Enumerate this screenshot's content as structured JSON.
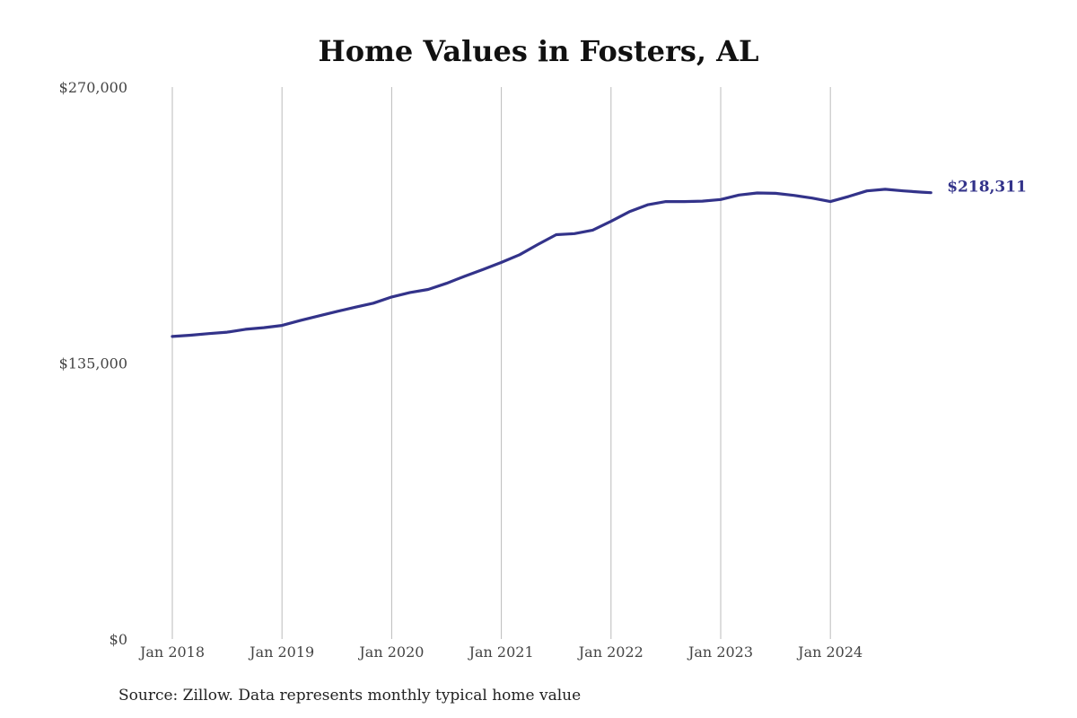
{
  "chart_data": {
    "type": "line",
    "title": "Home Values in Fosters, AL",
    "xlabel": "",
    "ylabel": "",
    "ylim": [
      0,
      270000
    ],
    "y_ticks": [
      {
        "value": 0,
        "label": "$0"
      },
      {
        "value": 135000,
        "label": "$135,000"
      },
      {
        "value": 270000,
        "label": "$270,000"
      }
    ],
    "x_ticks": [
      {
        "date": "2018-01",
        "label": "Jan 2018"
      },
      {
        "date": "2019-01",
        "label": "Jan 2019"
      },
      {
        "date": "2020-01",
        "label": "Jan 2020"
      },
      {
        "date": "2021-01",
        "label": "Jan 2021"
      },
      {
        "date": "2022-01",
        "label": "Jan 2022"
      },
      {
        "date": "2023-01",
        "label": "Jan 2023"
      },
      {
        "date": "2024-01",
        "label": "Jan 2024"
      }
    ],
    "xlim": [
      "2018-01",
      "2024-12"
    ],
    "grid": "vertical",
    "color": "#33338a",
    "end_label": "$218,311",
    "series": [
      {
        "x": [
          "2018-01",
          "2018-03",
          "2018-05",
          "2018-07",
          "2018-09",
          "2018-11",
          "2019-01",
          "2019-03",
          "2019-05",
          "2019-07",
          "2019-09",
          "2019-11",
          "2020-01",
          "2020-03",
          "2020-05",
          "2020-07",
          "2020-09",
          "2020-11",
          "2021-01",
          "2021-03",
          "2021-05",
          "2021-07",
          "2021-09",
          "2021-11",
          "2022-01",
          "2022-03",
          "2022-05",
          "2022-07",
          "2022-09",
          "2022-11",
          "2023-01",
          "2023-03",
          "2023-05",
          "2023-07",
          "2023-09",
          "2023-11",
          "2024-01",
          "2024-03",
          "2024-05",
          "2024-07",
          "2024-09",
          "2024-11",
          "2024-12"
        ],
        "values": [
          148000,
          148600,
          149400,
          150100,
          151500,
          152300,
          153400,
          155800,
          158000,
          160200,
          162300,
          164300,
          167300,
          169500,
          171000,
          174000,
          177500,
          180800,
          184200,
          188000,
          193000,
          197800,
          198300,
          200000,
          204300,
          209000,
          212400,
          214000,
          214000,
          214200,
          215000,
          217200,
          218200,
          218000,
          217000,
          215700,
          214000,
          216500,
          219200,
          220000,
          219200,
          218600,
          218311
        ]
      }
    ]
  },
  "source_note": "Source: Zillow. Data represents monthly typical home value"
}
